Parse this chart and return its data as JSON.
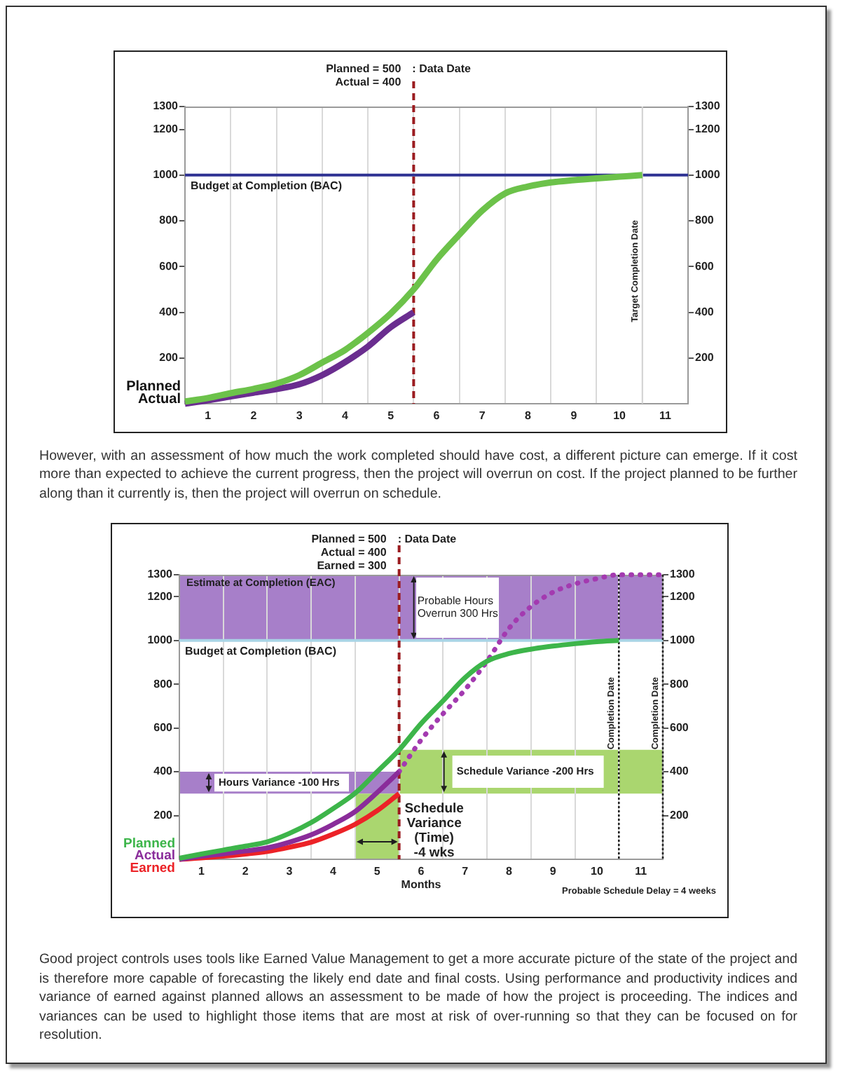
{
  "chart_data": [
    {
      "type": "line",
      "xlim": [
        0.5,
        11.5
      ],
      "xticks": [
        1,
        {
          "value": 1.5,
          "label": null
        },
        2,
        {
          "value": 2.5,
          "label": null
        },
        3,
        {
          "value": 3.5,
          "label": null
        },
        4,
        {
          "value": 4.5,
          "label": null
        },
        5,
        {
          "value": 5.5,
          "label": null
        },
        6,
        {
          "value": 6.5,
          "label": null
        },
        7,
        {
          "value": 7.5,
          "label": null
        },
        8,
        {
          "value": 8.5,
          "label": null
        },
        9,
        {
          "value": 9.5,
          "label": null
        },
        10,
        {
          "value": 10.5,
          "label": null
        },
        11
      ],
      "ylim": [
        0,
        1300
      ],
      "yticks": [
        200,
        400,
        600,
        800,
        1000,
        1200,
        1300
      ],
      "y2lim": [
        0,
        1300
      ],
      "y2ticks": [
        200,
        400,
        600,
        800,
        1000,
        1200,
        1300
      ],
      "grid": "x",
      "series": [
        {
          "name": "Planned",
          "color": "#6cc24a",
          "x": [
            0.5,
            1,
            1.5,
            2,
            2.5,
            3,
            3.5,
            4,
            4.5,
            5,
            5.5,
            6,
            6.5,
            7,
            7.5,
            8,
            8.5,
            9,
            9.5,
            10,
            10.5
          ],
          "values": [
            10,
            25,
            46,
            65,
            88,
            125,
            180,
            235,
            310,
            395,
            500,
            630,
            740,
            845,
            920,
            950,
            968,
            978,
            986,
            993,
            1000
          ]
        },
        {
          "name": "Actual",
          "color": "#6a2d8f",
          "x": [
            0.5,
            1,
            1.5,
            2,
            2.5,
            3,
            3.5,
            4,
            4.5,
            5,
            5.5
          ],
          "values": [
            0,
            15,
            32,
            48,
            64,
            85,
            125,
            182,
            250,
            335,
            400
          ]
        }
      ],
      "ref_lines": [
        {
          "axis": "y",
          "value": 1000,
          "label": "Budget at Completion (BAC)",
          "color": "#2e3192"
        },
        {
          "axis": "x",
          "value": 5.5,
          "label": ": Data Date",
          "color": "#9b1c20",
          "line_style": "dashed"
        },
        {
          "axis": "x",
          "value": 10.5,
          "label": "Target Completion Date",
          "color": "#d4d4d4"
        }
      ],
      "annotations": [
        "Planned = 500",
        "Actual = 400",
        "However, with an assessment of how much the work completed should have cost, a different picture can emerge. If it cost more than expected to achieve the current progress, then the project will overrun on cost. If the project planned to be further along than it currently is, then the project will overrun on schedule."
      ]
    },
    {
      "type": "line",
      "xlabel": "Months",
      "xlim": [
        0.5,
        11.5
      ],
      "xticks": [
        1,
        {
          "value": 1.5,
          "label": null
        },
        2,
        {
          "value": 2.5,
          "label": null
        },
        3,
        {
          "value": 3.5,
          "label": null
        },
        4,
        {
          "value": 4.5,
          "label": null
        },
        5,
        {
          "value": 5.5,
          "label": null
        },
        6,
        {
          "value": 6.5,
          "label": null
        },
        7,
        {
          "value": 7.5,
          "label": null
        },
        8,
        {
          "value": 8.5,
          "label": null
        },
        9,
        {
          "value": 9.5,
          "label": null
        },
        10,
        {
          "value": 10.5,
          "label": null
        },
        11
      ],
      "ylim": [
        0,
        1300
      ],
      "yticks": [
        200,
        400,
        600,
        800,
        1000,
        1200,
        1300
      ],
      "y2lim": [
        0,
        1300
      ],
      "y2ticks": [
        200,
        400,
        600,
        800,
        1000,
        1200,
        1300
      ],
      "grid": "x",
      "legend": "left",
      "series": [
        {
          "name": "Planned",
          "color": "#3db54a",
          "x": [
            0.5,
            1,
            1.5,
            2,
            2.5,
            3,
            3.5,
            4,
            4.5,
            5,
            5.5,
            6,
            6.5,
            7,
            7.5,
            8,
            8.5,
            9,
            9.5,
            10,
            10.5
          ],
          "values": [
            5,
            24,
            42,
            60,
            80,
            118,
            168,
            232,
            302,
            400,
            500,
            620,
            724,
            830,
            905,
            940,
            960,
            974,
            985,
            994,
            1000
          ]
        },
        {
          "name": "Actual",
          "color": "#8a2c9a",
          "x": [
            0.5,
            1,
            1.5,
            2,
            2.5,
            3,
            3.5,
            4,
            4.5,
            5,
            5.5
          ],
          "values": [
            0,
            14,
            25,
            38,
            52,
            78,
            112,
            160,
            218,
            305,
            400
          ]
        },
        {
          "name": "Earned",
          "color": "#ec2227",
          "x": [
            0.5,
            1,
            1.5,
            2,
            2.5,
            3,
            3.5,
            4,
            4.5,
            5,
            5.5
          ],
          "values": [
            0,
            6,
            14,
            24,
            36,
            55,
            78,
            115,
            160,
            222,
            300
          ]
        },
        {
          "color": "#a33ab0",
          "line_style": "dotted",
          "x": [
            5.5,
            6,
            6.5,
            7,
            7.5,
            8,
            8.5,
            9,
            9.5,
            10,
            10.5,
            11,
            11.5
          ],
          "values": [
            400,
            545,
            665,
            775,
            905,
            1055,
            1155,
            1220,
            1258,
            1282,
            1300,
            1300,
            1300
          ]
        }
      ],
      "ref_lines": [
        {
          "axis": "y",
          "value": 1000,
          "label": "Budget at Completion (BAC)",
          "color": "#a9d4e6"
        },
        {
          "axis": "x",
          "value": 5.5,
          "label": ": Data Date",
          "color": "#9b1c20",
          "line_style": "dashed"
        },
        {
          "axis": "x",
          "value": 10.5,
          "label": "Completion Date",
          "color": "#222222",
          "line_style": "dotted"
        },
        {
          "axis": "x",
          "value": 11.5,
          "label": "Completion Date",
          "color": "#222222",
          "line_style": "dotted"
        }
      ],
      "bands": [
        {
          "axis": "y",
          "from": 1000,
          "to": 1300,
          "label": "Estimate at Completion (EAC)",
          "color": "#a77fc9"
        },
        {
          "axis": "y",
          "from": 300,
          "to": 400,
          "label": "Hours Variance -100 Hrs",
          "color": "#a77fc9"
        },
        {
          "axis": "y",
          "from": 300,
          "to": 500,
          "label": "Schedule Variance -200 Hrs",
          "color": "#aad66f"
        },
        {
          "axis": "x",
          "from": 4.5,
          "to": 5.5,
          "label": "Schedule Variance (Time) -4 wks",
          "color": "#aad66f"
        }
      ],
      "annotations": [
        "Planned = 500",
        "Actual = 400",
        "Earned = 300",
        "Probable Hours Overrun 300 Hrs",
        "Probable Schedule Delay = 4 weeks",
        "Good project controls uses tools like Earned Value Management to get a more accurate picture of the state of the project and is therefore more capable of forecasting the likely end date and final costs. Using performance and productivity indices and variance of earned against planned allows an assessment to be made of how the project is proceeding. The indices and variances can be used to highlight those items that are most at risk of over-running so that they can be focused on for resolution."
      ]
    }
  ]
}
